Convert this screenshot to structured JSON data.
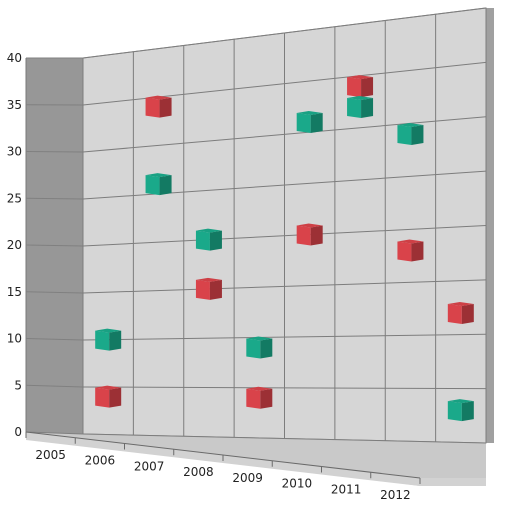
{
  "chart_data": {
    "type": "scatter",
    "view": "3d-perspective",
    "x_categories": [
      "2005",
      "2006",
      "2007",
      "2008",
      "2009",
      "2010",
      "2011",
      "2012"
    ],
    "y_ticks": [
      "0",
      "5",
      "10",
      "15",
      "20",
      "25",
      "30",
      "35",
      "40"
    ],
    "ylim": [
      0,
      40
    ],
    "grid": true,
    "series": [
      {
        "color": "#d9434a",
        "marker": "cube",
        "points": [
          {
            "x": "2005",
            "y": 4
          },
          {
            "x": "2006",
            "y": 34
          },
          {
            "x": "2007",
            "y": 15
          },
          {
            "x": "2008",
            "y": 4
          },
          {
            "x": "2009",
            "y": 20
          },
          {
            "x": "2010",
            "y": 34
          },
          {
            "x": "2011",
            "y": 18
          },
          {
            "x": "2012",
            "y": 12
          }
        ]
      },
      {
        "color": "#1aa98a",
        "marker": "cube",
        "points": [
          {
            "x": "2005",
            "y": 10
          },
          {
            "x": "2006",
            "y": 26
          },
          {
            "x": "2007",
            "y": 20
          },
          {
            "x": "2008",
            "y": 9
          },
          {
            "x": "2009",
            "y": 31
          },
          {
            "x": "2010",
            "y": 32
          },
          {
            "x": "2011",
            "y": 29
          },
          {
            "x": "2012",
            "y": 3
          }
        ]
      }
    ]
  }
}
